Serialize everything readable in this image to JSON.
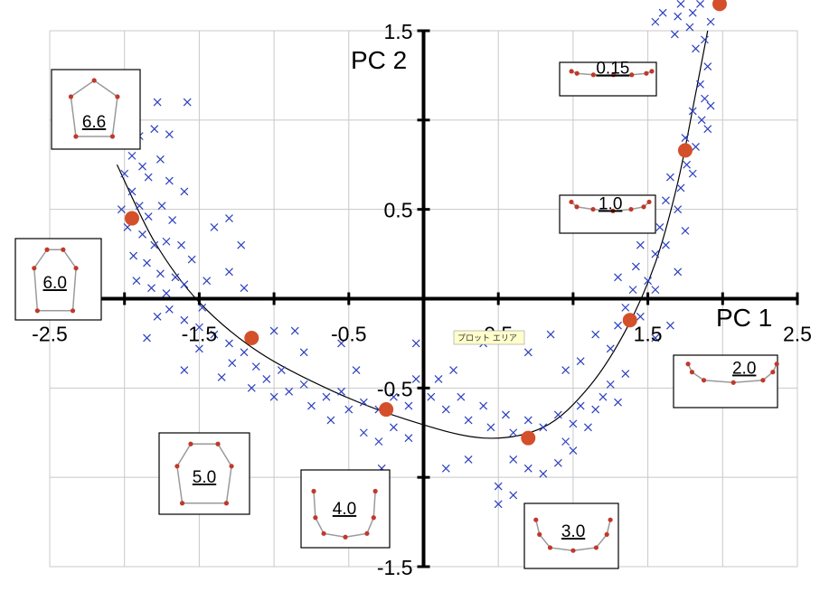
{
  "chart_data": {
    "type": "scatter",
    "title": "",
    "xlabel": "PC 1",
    "ylabel": "PC 2",
    "xlim": [
      -2.5,
      2.5
    ],
    "ylim": [
      -1.5,
      1.5
    ],
    "x_ticks": [
      -2.5,
      -1.5,
      -0.5,
      0.5,
      1.5,
      2.5
    ],
    "x_tick_labels": [
      "-2.5",
      "-1.5",
      "-0.5",
      "0.5",
      "1.5",
      "2.5"
    ],
    "y_ticks": [
      -1.5,
      -0.5,
      0.5,
      1.5
    ],
    "y_tick_labels": [
      "-1.5",
      "-0.5",
      "0.5",
      "1.5"
    ],
    "grid": true,
    "colors": {
      "samples": "#2b3fbf",
      "key_points": "#d4502a",
      "grid": "#c8c8c8",
      "curve": "#000000",
      "inset_line": "#9a9a9a",
      "tooltip_bg": "#ffffcc"
    },
    "tooltip_text": "プロット エリア",
    "series": [
      {
        "marker": "x",
        "points": [
          [
            -1.98,
            0.9
          ],
          [
            -2.05,
            0.86
          ],
          [
            -1.9,
            0.91
          ],
          [
            -1.92,
            1.1
          ],
          [
            -1.78,
            1.1
          ],
          [
            -1.58,
            1.1
          ],
          [
            -1.8,
            0.95
          ],
          [
            -1.7,
            0.92
          ],
          [
            -1.95,
            0.8
          ],
          [
            -1.88,
            0.74
          ],
          [
            -2.0,
            0.7
          ],
          [
            -1.84,
            0.68
          ],
          [
            -1.76,
            0.78
          ],
          [
            -1.7,
            0.66
          ],
          [
            -1.6,
            0.6
          ],
          [
            -1.95,
            0.6
          ],
          [
            -1.9,
            0.52
          ],
          [
            -2.02,
            0.5
          ],
          [
            -1.84,
            0.46
          ],
          [
            -1.75,
            0.52
          ],
          [
            -1.68,
            0.44
          ],
          [
            -1.98,
            0.4
          ],
          [
            -1.88,
            0.36
          ],
          [
            -1.8,
            0.3
          ],
          [
            -1.72,
            0.32
          ],
          [
            -1.62,
            0.3
          ],
          [
            -1.94,
            0.24
          ],
          [
            -1.85,
            0.2
          ],
          [
            -1.76,
            0.14
          ],
          [
            -1.66,
            0.12
          ],
          [
            -1.92,
            0.1
          ],
          [
            -1.82,
            0.06
          ],
          [
            -1.72,
            0.03
          ],
          [
            -1.6,
            0.08
          ],
          [
            -1.55,
            0.22
          ],
          [
            -1.45,
            0.1
          ],
          [
            -1.4,
            0.4
          ],
          [
            -1.3,
            0.45
          ],
          [
            -1.22,
            0.3
          ],
          [
            -1.3,
            0.15
          ],
          [
            -1.2,
            0.06
          ],
          [
            -1.78,
            -0.1
          ],
          [
            -1.7,
            -0.06
          ],
          [
            -1.6,
            -0.12
          ],
          [
            -1.5,
            -0.16
          ],
          [
            -1.48,
            -0.05
          ],
          [
            -1.4,
            -0.2
          ],
          [
            -1.3,
            -0.25
          ],
          [
            -1.28,
            -0.36
          ],
          [
            -1.2,
            -0.3
          ],
          [
            -1.12,
            -0.38
          ],
          [
            -1.35,
            -0.44
          ],
          [
            -1.15,
            -0.5
          ],
          [
            -1.05,
            -0.45
          ],
          [
            -0.95,
            -0.4
          ],
          [
            -1.0,
            -0.55
          ],
          [
            -0.9,
            -0.52
          ],
          [
            -0.8,
            -0.48
          ],
          [
            -0.75,
            -0.6
          ],
          [
            -0.65,
            -0.55
          ],
          [
            -0.55,
            -0.52
          ],
          [
            -0.5,
            -0.62
          ],
          [
            -0.4,
            -0.58
          ],
          [
            -0.3,
            -0.62
          ],
          [
            -0.2,
            -0.55
          ],
          [
            -0.1,
            -0.6
          ],
          [
            -0.62,
            -0.68
          ],
          [
            -0.4,
            -0.75
          ],
          [
            -0.3,
            -0.8
          ],
          [
            -0.2,
            -0.72
          ],
          [
            -0.1,
            -0.78
          ],
          [
            -0.28,
            -0.95
          ],
          [
            -0.86,
            -0.18
          ],
          [
            -0.55,
            -0.25
          ],
          [
            -0.45,
            -0.4
          ],
          [
            -0.05,
            -0.45
          ],
          [
            0.05,
            -0.55
          ],
          [
            0.1,
            -0.45
          ],
          [
            0.15,
            -0.62
          ],
          [
            0.25,
            -0.55
          ],
          [
            0.3,
            -0.68
          ],
          [
            0.4,
            -0.6
          ],
          [
            0.45,
            -0.72
          ],
          [
            0.55,
            -0.65
          ],
          [
            0.6,
            -0.75
          ],
          [
            0.7,
            -0.68
          ],
          [
            0.8,
            -0.72
          ],
          [
            0.9,
            -0.65
          ],
          [
            0.95,
            -0.8
          ],
          [
            1.0,
            -0.7
          ],
          [
            1.05,
            -0.6
          ],
          [
            1.1,
            -0.72
          ],
          [
            1.15,
            -0.62
          ],
          [
            1.2,
            -0.55
          ],
          [
            1.25,
            -0.48
          ],
          [
            1.3,
            -0.58
          ],
          [
            1.35,
            -0.42
          ],
          [
            0.6,
            -0.9
          ],
          [
            0.7,
            -0.95
          ],
          [
            0.8,
            -0.98
          ],
          [
            0.9,
            -0.92
          ],
          [
            1.0,
            -0.85
          ],
          [
            0.5,
            -1.05
          ],
          [
            0.6,
            -1.1
          ],
          [
            0.5,
            -1.15
          ],
          [
            0.3,
            -0.9
          ],
          [
            0.15,
            -0.95
          ],
          [
            0.4,
            -0.25
          ],
          [
            0.7,
            -0.3
          ],
          [
            0.85,
            -0.2
          ],
          [
            0.95,
            -0.4
          ],
          [
            1.05,
            -0.35
          ],
          [
            1.15,
            -0.2
          ],
          [
            1.25,
            -0.28
          ],
          [
            1.3,
            -0.15
          ],
          [
            1.35,
            -0.05
          ],
          [
            1.4,
            0.05
          ],
          [
            1.3,
            0.12
          ],
          [
            1.42,
            0.18
          ],
          [
            1.5,
            0.1
          ],
          [
            1.45,
            0.3
          ],
          [
            1.55,
            0.25
          ],
          [
            1.5,
            0.45
          ],
          [
            1.58,
            0.4
          ],
          [
            1.62,
            0.55
          ],
          [
            1.7,
            0.5
          ],
          [
            1.65,
            0.68
          ],
          [
            1.72,
            0.62
          ],
          [
            1.76,
            0.75
          ],
          [
            1.8,
            0.7
          ],
          [
            1.75,
            0.9
          ],
          [
            1.82,
            0.85
          ],
          [
            1.86,
            1.0
          ],
          [
            1.9,
            0.95
          ],
          [
            1.8,
            1.05
          ],
          [
            1.88,
            1.12
          ],
          [
            1.92,
            1.08
          ],
          [
            1.85,
            1.2
          ],
          [
            1.9,
            1.3
          ],
          [
            1.82,
            1.4
          ],
          [
            1.88,
            1.45
          ],
          [
            1.92,
            1.55
          ],
          [
            1.8,
            1.6
          ],
          [
            1.85,
            1.65
          ],
          [
            1.78,
            1.52
          ],
          [
            1.7,
            1.58
          ],
          [
            1.72,
            1.65
          ],
          [
            1.68,
            1.48
          ],
          [
            1.6,
            1.6
          ],
          [
            1.55,
            1.55
          ],
          [
            1.95,
            1.72
          ],
          [
            1.88,
            1.75
          ],
          [
            1.8,
            1.78
          ],
          [
            1.75,
            1.72
          ],
          [
            1.62,
            0.3
          ],
          [
            1.55,
            0.05
          ],
          [
            1.45,
            -0.1
          ],
          [
            1.55,
            -0.22
          ],
          [
            1.65,
            -0.15
          ],
          [
            1.7,
            0.15
          ],
          [
            1.75,
            0.38
          ],
          [
            -0.05,
            -0.25
          ],
          [
            0.2,
            -0.4
          ],
          [
            -1.5,
            -0.28
          ],
          [
            -1.6,
            -0.4
          ],
          [
            -1.85,
            -0.22
          ],
          [
            -1.0,
            -0.18
          ],
          [
            -0.8,
            -0.3
          ]
        ]
      },
      {
        "marker": "filled-circle",
        "points": [
          [
            -2.22,
            1.0
          ],
          [
            -1.95,
            0.45
          ],
          [
            -1.15,
            -0.22
          ],
          [
            -0.25,
            -0.62
          ],
          [
            0.7,
            -0.78
          ],
          [
            1.38,
            -0.12
          ],
          [
            1.75,
            0.83
          ],
          [
            1.98,
            1.65
          ]
        ]
      },
      {
        "marker": "line",
        "points": [
          [
            -2.05,
            0.75
          ],
          [
            -1.8,
            0.32
          ],
          [
            -1.5,
            -0.02
          ],
          [
            -1.1,
            -0.3
          ],
          [
            -0.6,
            -0.52
          ],
          [
            -0.1,
            -0.68
          ],
          [
            0.4,
            -0.78
          ],
          [
            0.8,
            -0.72
          ],
          [
            1.1,
            -0.5
          ],
          [
            1.35,
            -0.18
          ],
          [
            1.55,
            0.2
          ],
          [
            1.7,
            0.65
          ],
          [
            1.82,
            1.15
          ],
          [
            1.9,
            1.5
          ]
        ]
      }
    ],
    "annotations": [
      {
        "label": "6.6"
      },
      {
        "label": "6.0"
      },
      {
        "label": "5.0"
      },
      {
        "label": "4.0"
      },
      {
        "label": "3.0"
      },
      {
        "label": "2.0"
      },
      {
        "label": "1.0"
      },
      {
        "label": "0.15"
      }
    ]
  }
}
